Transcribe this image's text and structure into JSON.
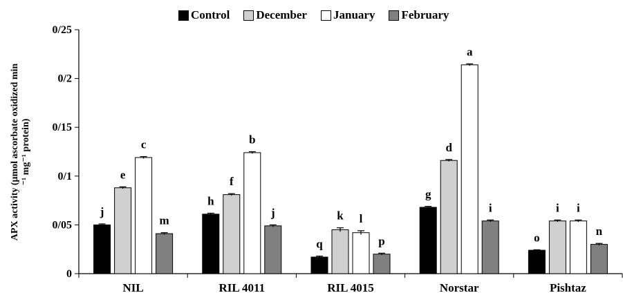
{
  "chart_data": {
    "type": "bar",
    "categories": [
      "NIL",
      "RIL 4011",
      "RIL 4015",
      "Norstar",
      "Pishtaz"
    ],
    "series": [
      {
        "name": "Control",
        "color": "#000000",
        "values": [
          0.05,
          0.061,
          0.017,
          0.068,
          0.024
        ],
        "errors": [
          0.001,
          0.001,
          0.001,
          0.001,
          0.0005
        ],
        "letters": [
          "j",
          "h",
          "q",
          "g",
          "o"
        ]
      },
      {
        "name": "December",
        "color": "#d0d0d0",
        "values": [
          0.088,
          0.081,
          0.045,
          0.116,
          0.054
        ],
        "errors": [
          0.001,
          0.001,
          0.002,
          0.001,
          0.001
        ],
        "letters": [
          "e",
          "f",
          "k",
          "d",
          "i"
        ]
      },
      {
        "name": "January",
        "color": "#ffffff",
        "values": [
          0.119,
          0.124,
          0.042,
          0.214,
          0.054
        ],
        "errors": [
          0.001,
          0.001,
          0.002,
          0.001,
          0.001
        ],
        "letters": [
          "c",
          "b",
          "l",
          "a",
          "i"
        ]
      },
      {
        "name": "February",
        "color": "#808080",
        "values": [
          0.041,
          0.049,
          0.02,
          0.054,
          0.03
        ],
        "errors": [
          0.001,
          0.001,
          0.001,
          0.001,
          0.001
        ],
        "letters": [
          "m",
          "j",
          "p",
          "i",
          "n"
        ]
      }
    ],
    "yticks": [
      "0",
      "0/05",
      "0/1",
      "0/15",
      "0/2",
      "0/25"
    ],
    "ylim": [
      0,
      0.25
    ],
    "ylabel_line1": "APX activity (μmol ascorbate oxidized  min",
    "ylabel_line2": "⁻¹ mg⁻¹ protein)",
    "xlabel": "",
    "title": "",
    "legend_position": "top",
    "grid": false
  }
}
